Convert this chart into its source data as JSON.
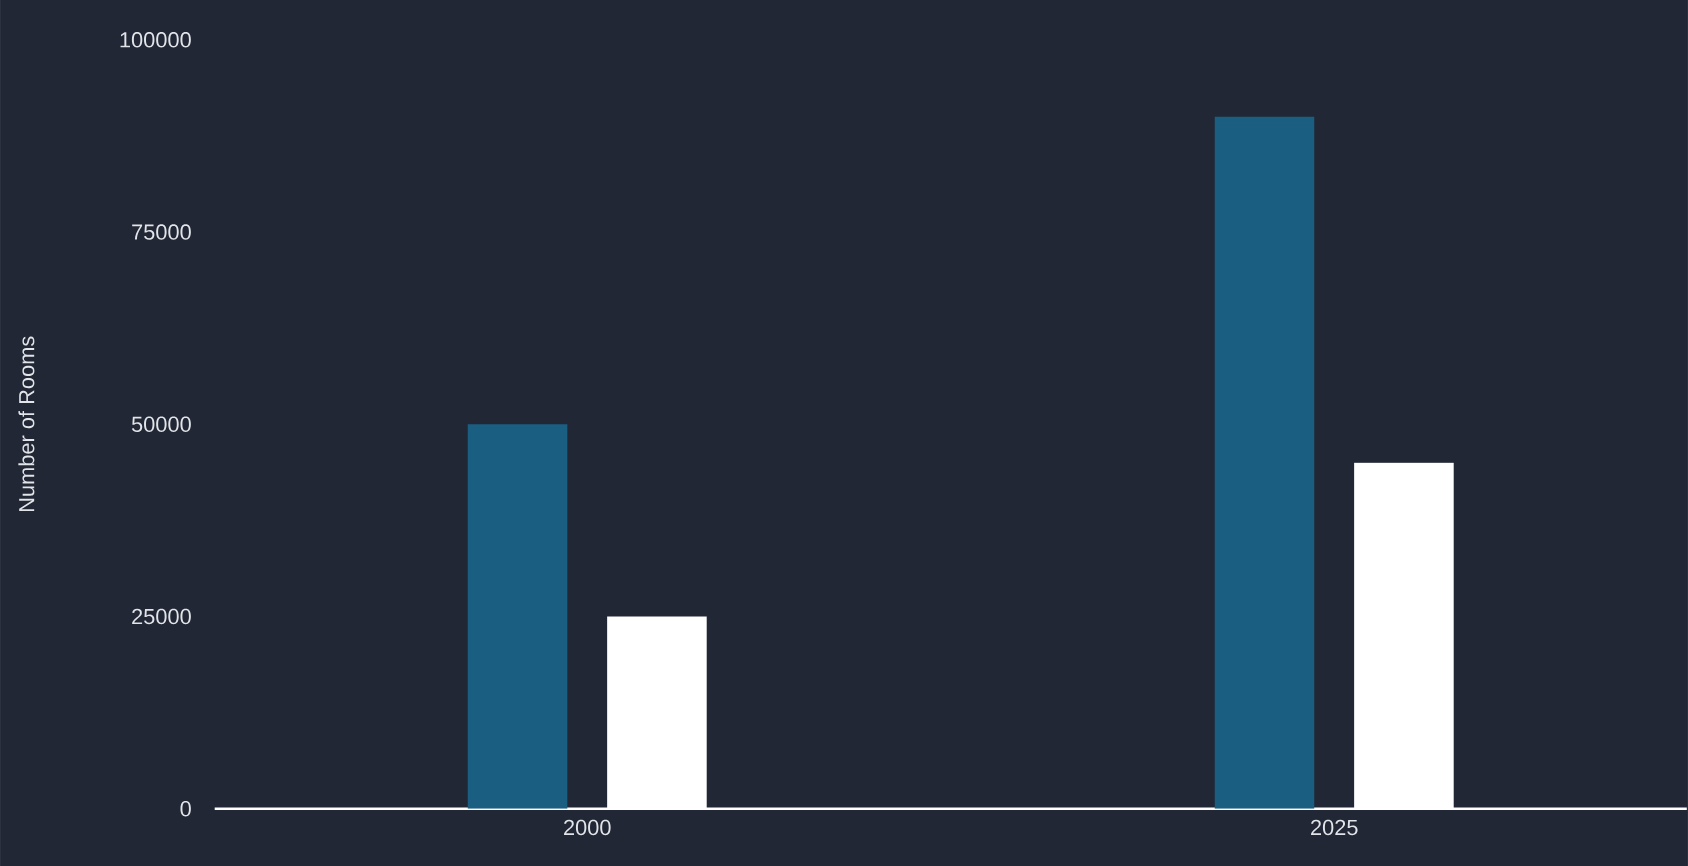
{
  "chart_data": {
    "type": "bar",
    "ylabel": "Number of Rooms",
    "categories": [
      "2000",
      "2025"
    ],
    "series": [
      {
        "color": "#1a5f82",
        "values": [
          50000,
          90000
        ]
      },
      {
        "color": "#ffffff",
        "values": [
          25000,
          45000
        ]
      }
    ],
    "ylim": [
      0,
      100000
    ],
    "yticks": [
      0,
      25000,
      50000,
      75000,
      100000
    ]
  }
}
